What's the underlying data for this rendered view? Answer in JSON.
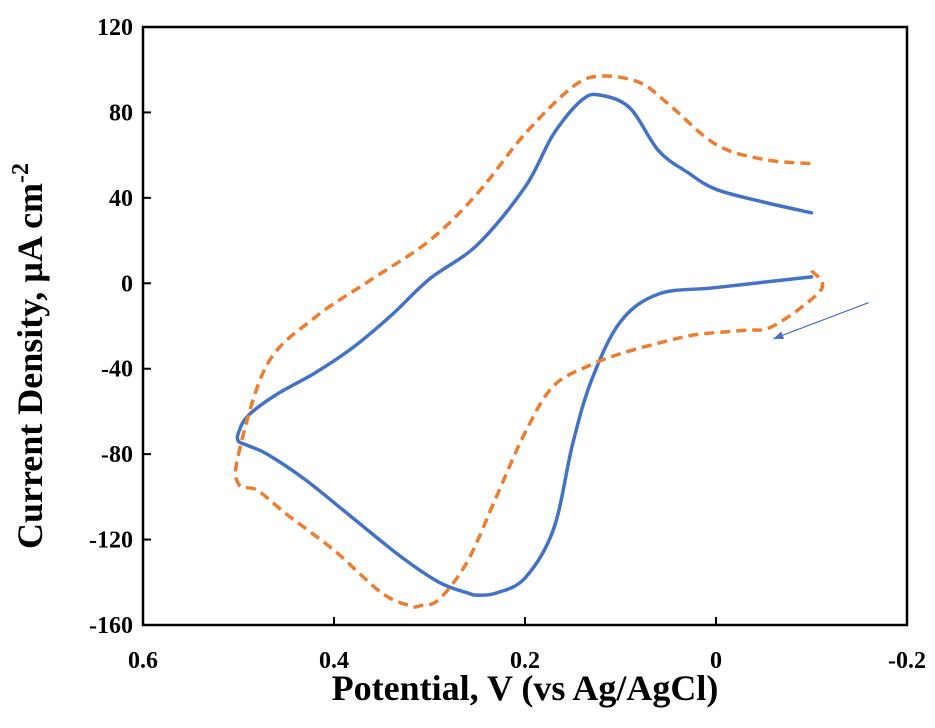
{
  "chart_data": {
    "type": "line",
    "title": "",
    "xlabel": "Potential, V (vs Ag/AgCl)",
    "ylabel": {
      "text": "Current Density, µA cm",
      "sup": "-2"
    },
    "xlim": [
      0.6,
      -0.2
    ],
    "ylim": [
      -160,
      120
    ],
    "x_reversed": true,
    "xticks": [
      0.6,
      0.4,
      0.2,
      0,
      -0.2
    ],
    "xtick_labels": [
      "0.6",
      "0.4",
      "0.2",
      "0",
      "-0.2"
    ],
    "yticks": [
      120,
      80,
      40,
      0,
      -40,
      -80,
      -120,
      -160
    ],
    "ytick_labels": [
      "120",
      "80",
      "40",
      "0",
      "-40",
      "-80",
      "-120",
      "-160"
    ],
    "grid": false,
    "legend": "none",
    "annotation": {
      "type": "arrow",
      "from": [
        -0.16,
        -9
      ],
      "to": [
        -0.06,
        -26
      ]
    },
    "series": [
      {
        "style": "solid",
        "color": "#4472C4",
        "x": [
          -0.1,
          0.0,
          0.06,
          0.1,
          0.13,
          0.15,
          0.17,
          0.2,
          0.23,
          0.25,
          0.26,
          0.29,
          0.33,
          0.38,
          0.43,
          0.47,
          0.49,
          0.5,
          0.5,
          0.49,
          0.46,
          0.42,
          0.38,
          0.34,
          0.3,
          0.25,
          0.2,
          0.17,
          0.14,
          0.12,
          0.09,
          0.06,
          0.03,
          0.0,
          -0.05,
          -0.1
        ],
        "y": [
          3,
          -2,
          -5,
          -18,
          -45,
          -75,
          -115,
          -138,
          -145,
          -146,
          -145,
          -140,
          -128,
          -110,
          -92,
          -80,
          -76,
          -74,
          -70,
          -62,
          -52,
          -42,
          -30,
          -15,
          2,
          18,
          45,
          70,
          86,
          88,
          82,
          62,
          52,
          44,
          38,
          33
        ]
      },
      {
        "style": "dashed",
        "color": "#ED7D31",
        "x": [
          -0.1,
          -0.11,
          -0.06,
          -0.03,
          0.02,
          0.06,
          0.1,
          0.13,
          0.17,
          0.2,
          0.23,
          0.26,
          0.29,
          0.31,
          0.32,
          0.35,
          0.4,
          0.45,
          0.48,
          0.5,
          0.5,
          0.47,
          0.42,
          0.36,
          0.3,
          0.25,
          0.2,
          0.15,
          0.12,
          0.08,
          0.05,
          0.0,
          -0.05,
          -0.1
        ],
        "y": [
          6,
          -3,
          -20,
          -22,
          -24,
          -28,
          -33,
          -38,
          -48,
          -70,
          -100,
          -130,
          -148,
          -151,
          -151,
          -145,
          -125,
          -108,
          -97,
          -94,
          -80,
          -38,
          -16,
          2,
          20,
          42,
          70,
          92,
          97,
          94,
          84,
          65,
          58,
          56
        ]
      }
    ]
  }
}
